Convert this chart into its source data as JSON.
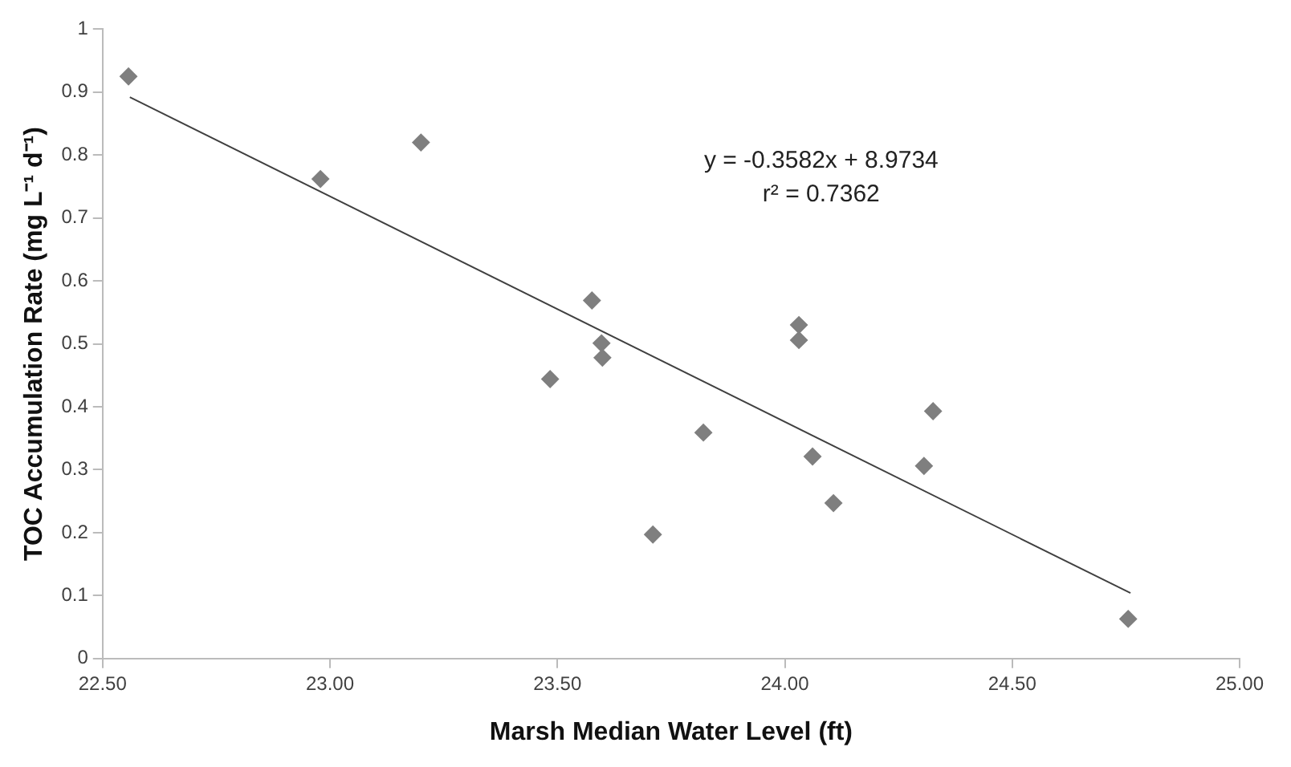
{
  "chart_data": {
    "type": "scatter",
    "xlabel": "Marsh Median Water Level (ft)",
    "ylabel": "TOC Accumulation Rate (mg L⁻¹ d⁻¹)",
    "x": [
      22.557,
      22.979,
      23.2,
      23.484,
      23.576,
      23.597,
      23.599,
      23.71,
      23.821,
      24.031,
      24.031,
      24.061,
      24.107,
      24.306,
      24.326,
      24.755
    ],
    "series": [
      {
        "type": "scatter",
        "color": "#7f7f7f",
        "values": [
          0.925,
          0.762,
          0.82,
          0.444,
          0.569,
          0.501,
          0.478,
          0.197,
          0.359,
          0.53,
          0.506,
          0.321,
          0.247,
          0.306,
          0.393,
          0.063
        ]
      },
      {
        "type": "line",
        "color": "#404040",
        "marker": "none",
        "x": [
          22.56,
          24.76
        ],
        "values": [
          0.892,
          0.104
        ]
      }
    ],
    "xlim": [
      22.5,
      25
    ],
    "xticks": [
      {
        "value": 22.5,
        "label": "22.50"
      },
      {
        "value": 23,
        "label": "23.00"
      },
      {
        "value": 23.5,
        "label": "23.50"
      },
      {
        "value": 24,
        "label": "24.00"
      },
      {
        "value": 24.5,
        "label": "24.50"
      },
      {
        "value": 25,
        "label": "25.00"
      }
    ],
    "ylim": [
      0,
      1
    ],
    "yticks": [
      0,
      0.1,
      0.2,
      0.3,
      0.4,
      0.5,
      0.6,
      0.7,
      0.8,
      0.9,
      1
    ],
    "marker": "diamond",
    "grid": false,
    "legend": false,
    "annotations": [
      "y = -0.3582x + 8.9734",
      "r² = 0.7362"
    ]
  }
}
